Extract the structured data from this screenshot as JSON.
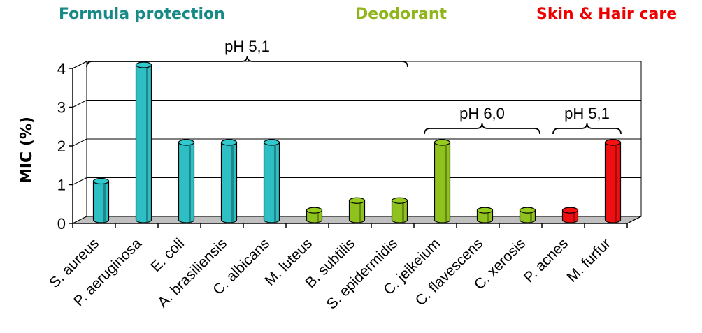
{
  "headers": [
    {
      "label": "Formula protection",
      "color": "#178a87"
    },
    {
      "label": "Deodorant",
      "color": "#8fb51a"
    },
    {
      "label": "Skin & Hair care",
      "color": "#ee0000"
    }
  ],
  "colors": {
    "teal": "#2dbfc4",
    "green": "#8fc21d",
    "red": "#ee1010",
    "floor": "#c0c0c0"
  },
  "chart_data": {
    "type": "bar",
    "ylabel": "MIC (%)",
    "ylim": [
      0,
      4
    ],
    "yticks": [
      "0",
      "1",
      "2",
      "3",
      "4"
    ],
    "categories": [
      "S. aureus",
      "P. aeruginosa",
      "E. coli",
      "A. brasiliensis",
      "C. albicans",
      "M. luteus",
      "B. subtilis",
      "S. epidermidis",
      "C. jeikeium",
      "C. flavescens",
      "C. xerosis",
      "P. acnes",
      "M. furfur"
    ],
    "values": [
      1,
      4,
      2,
      2,
      2,
      0.25,
      0.5,
      0.5,
      2,
      0.25,
      0.25,
      0.25,
      2
    ],
    "bar_groups": [
      "Formula protection",
      "Formula protection",
      "Formula protection",
      "Formula protection",
      "Formula protection",
      "Deodorant",
      "Deodorant",
      "Deodorant",
      "Deodorant",
      "Deodorant",
      "Deodorant",
      "Skin & Hair care",
      "Skin & Hair care"
    ],
    "annotations": [
      {
        "text": "pH 5,1",
        "from": 0,
        "to": 7
      },
      {
        "text": "pH 6,0",
        "from": 8,
        "to": 10
      },
      {
        "text": "pH 5,1",
        "from": 11,
        "to": 12
      }
    ],
    "grid": true
  }
}
